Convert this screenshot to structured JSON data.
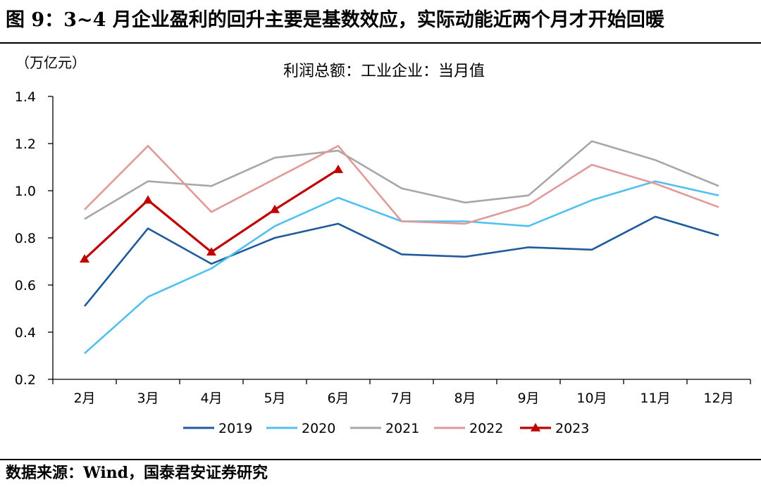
{
  "figure_title": "图 9：3~4 月企业盈利的回升主要是基数效应，实际动能近两个月才开始回暖",
  "source": "数据来源：Wind，国泰君安证券研究",
  "chart_data": {
    "type": "line",
    "title": "利润总额：工业企业：当月值",
    "unit": "（万亿元）",
    "categories": [
      "2月",
      "3月",
      "4月",
      "5月",
      "6月",
      "7月",
      "8月",
      "9月",
      "10月",
      "11月",
      "12月"
    ],
    "ylim": [
      0.2,
      1.4
    ],
    "yticks": [
      "0.2",
      "0.4",
      "0.6",
      "0.8",
      "1.0",
      "1.2",
      "1.4"
    ],
    "legend_position": "bottom",
    "grid": false,
    "series": [
      {
        "name": "2019",
        "color": "#1f5a9a",
        "marker": "none",
        "values": [
          0.51,
          0.84,
          0.69,
          0.8,
          0.86,
          0.73,
          0.72,
          0.76,
          0.75,
          0.89,
          0.81
        ]
      },
      {
        "name": "2020",
        "color": "#4fc0ef",
        "marker": "none",
        "values": [
          0.31,
          0.55,
          0.67,
          0.85,
          0.97,
          0.87,
          0.87,
          0.85,
          0.96,
          1.04,
          0.98
        ]
      },
      {
        "name": "2021",
        "color": "#a7a7a7",
        "marker": "none",
        "values": [
          0.88,
          1.04,
          1.02,
          1.14,
          1.17,
          1.01,
          0.95,
          0.98,
          1.21,
          1.13,
          1.02
        ]
      },
      {
        "name": "2022",
        "color": "#e19a9a",
        "marker": "none",
        "values": [
          0.92,
          1.19,
          0.91,
          1.05,
          1.19,
          0.87,
          0.86,
          0.94,
          1.11,
          1.03,
          0.93
        ]
      },
      {
        "name": "2023",
        "color": "#c00000",
        "marker": "triangle",
        "values": [
          0.71,
          0.96,
          0.74,
          0.92,
          1.09,
          null,
          null,
          null,
          null,
          null,
          null
        ]
      }
    ]
  }
}
